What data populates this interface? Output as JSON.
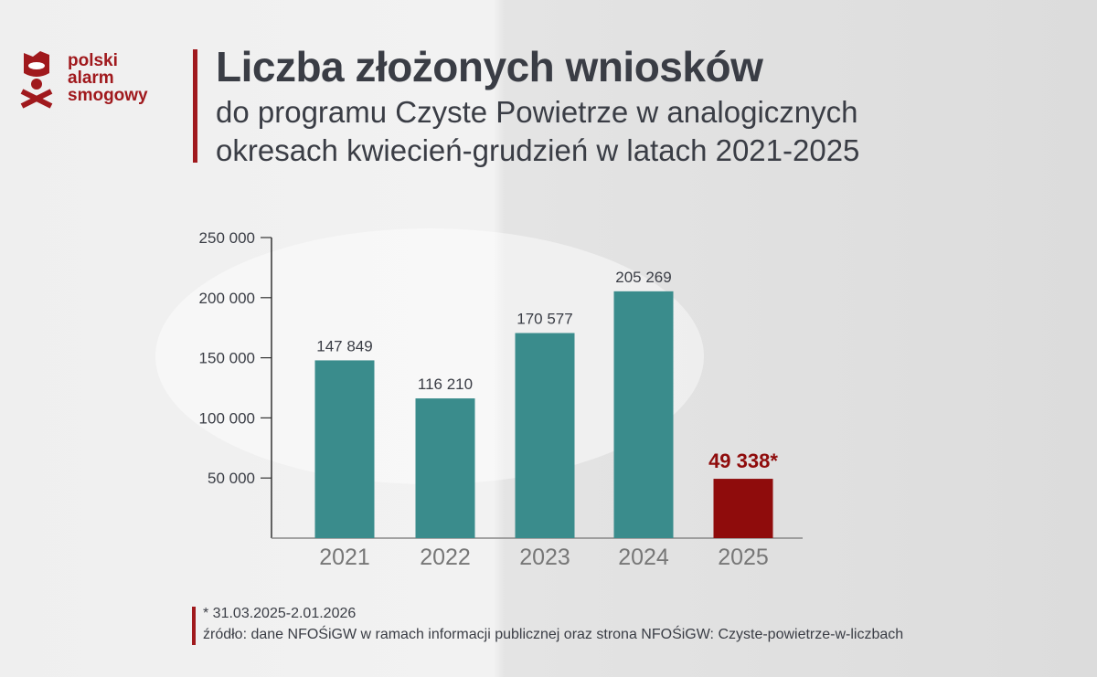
{
  "logo": {
    "icon": "gas-mask-icon",
    "lines": [
      "polski",
      "alarm",
      "smogowy"
    ],
    "color": "#a0191d"
  },
  "header": {
    "title": "Liczba złożonych wniosków",
    "subtitle_line1": "do programu Czyste Powietrze w analogicznych",
    "subtitle_line2": "okresach kwiecień-grudzień w latach 2021-2025"
  },
  "footer": {
    "note": "* 31.03.2025-2.01.2026",
    "source": "źródło: dane NFOŚiGW w ramach informacji publicznej oraz strona NFOŚiGW: Czyste-powietrze-w-liczbach"
  },
  "colors": {
    "bar": "#3a8c8c",
    "highlight": "#8f0c0c",
    "text": "#3a3d45",
    "axis": "#333333"
  },
  "chart_data": {
    "type": "bar",
    "title": "Liczba złożonych wniosków do programu Czyste Powietrze w analogicznych okresach kwiecień-grudzień w latach 2021-2025",
    "categories": [
      "2021",
      "2022",
      "2023",
      "2024",
      "2025"
    ],
    "values": [
      147849,
      116210,
      170577,
      205269,
      49338
    ],
    "value_labels": [
      "147 849",
      "116 210",
      "170 577",
      "205 269",
      "49 338*"
    ],
    "highlight_index": 4,
    "yticks": [
      50000,
      100000,
      150000,
      200000,
      250000
    ],
    "ytick_labels": [
      "50 000",
      "100 000",
      "150 000",
      "200 000",
      "250 000"
    ],
    "ylim": [
      0,
      250000
    ],
    "xlabel": "",
    "ylabel": "",
    "grid": false,
    "legend": "none",
    "annotation": "* 31.03.2025-2.01.2026"
  }
}
